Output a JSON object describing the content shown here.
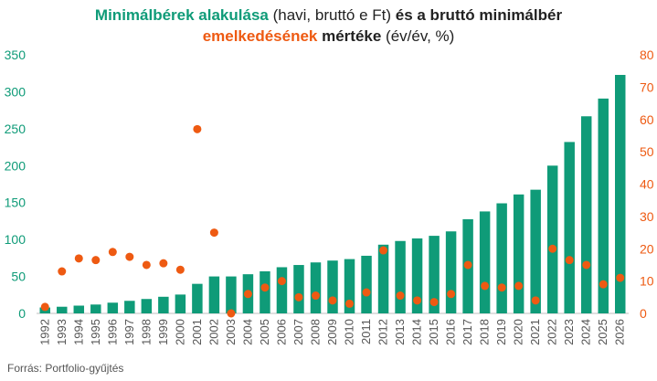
{
  "title": {
    "line1_part1": "Minimálbérek alakulása",
    "line1_part2": " (havi, bruttó e Ft) ",
    "line1_part3": "és a bruttó minimálbér",
    "line2_part1": "emelkedésének",
    "line2_part2": " mértéke",
    "line2_part3": " (év/év, %)"
  },
  "source": "Forrás: Portfolio-gyűjtés",
  "colors": {
    "bars": "#0f9b78",
    "dots": "#ee5a12",
    "left_axis": "#0f9b78",
    "right_axis": "#ee5a12"
  },
  "chart_data": {
    "type": "bar",
    "categories": [
      "1992",
      "1993",
      "1994",
      "1995",
      "1996",
      "1997",
      "1998",
      "1999",
      "2000",
      "2001",
      "2002",
      "2003",
      "2004",
      "2005",
      "2006",
      "2007",
      "2008",
      "2009",
      "2010",
      "2011",
      "2012",
      "2013",
      "2014",
      "2015",
      "2016",
      "2017",
      "2018",
      "2019",
      "2020",
      "2021",
      "2022",
      "2023",
      "2024",
      "2025",
      "2026"
    ],
    "series": [
      {
        "type": "bar",
        "axis": "left",
        "values": [
          8,
          9,
          10.5,
          12,
          14.5,
          17,
          19.5,
          22.5,
          25.5,
          40,
          50,
          50,
          53,
          57,
          62.5,
          65.5,
          69,
          71.5,
          73.5,
          78,
          93,
          98,
          101.5,
          105,
          111,
          127.5,
          138,
          149,
          161,
          167.4,
          200,
          232,
          266.8,
          290.8,
          322.8
        ]
      },
      {
        "type": "scatter",
        "axis": "right",
        "values": [
          2,
          13,
          17,
          16.5,
          19,
          17.5,
          15,
          15.5,
          13.5,
          57,
          25,
          0,
          6,
          8,
          10,
          5,
          5.5,
          4,
          3,
          6.5,
          19.5,
          5.5,
          4,
          3.5,
          6,
          15,
          8.5,
          8,
          8.5,
          4,
          20,
          16.5,
          15,
          9,
          11
        ]
      }
    ],
    "y_left": {
      "ylim": [
        0,
        350
      ],
      "ticks": [
        0,
        50,
        100,
        150,
        200,
        250,
        300,
        350
      ]
    },
    "y_right": {
      "ylim": [
        0,
        80
      ],
      "ticks": [
        0,
        10,
        20,
        30,
        40,
        50,
        60,
        70,
        80
      ]
    },
    "grid": false,
    "legend": "none"
  }
}
